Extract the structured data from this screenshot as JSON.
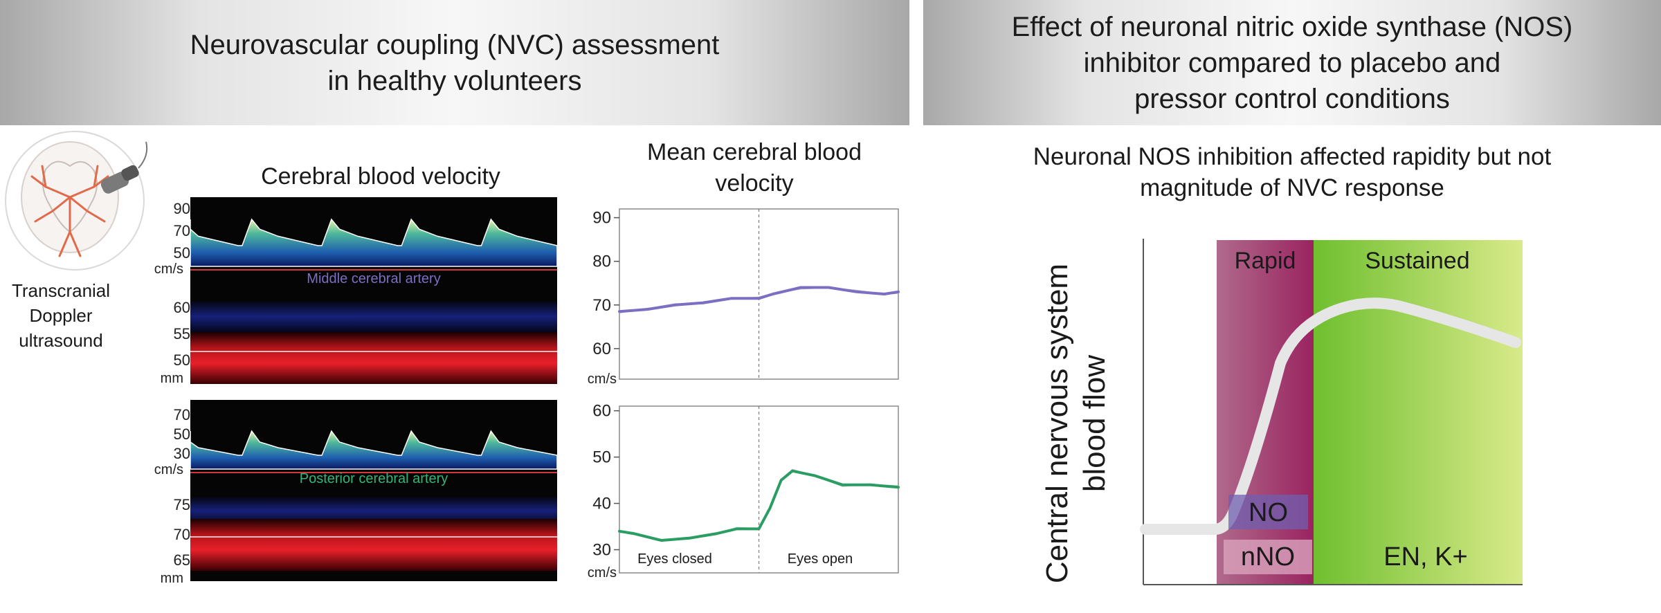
{
  "left_banner": {
    "line1": "Neurovascular coupling (NVC) assessment",
    "line2": "in healthy volunteers"
  },
  "right_banner": {
    "line1": "Effect of neuronal nitric oxide synthase (NOS)",
    "line2": "inhibitor compared to placebo and",
    "line3": "pressor control conditions"
  },
  "doppler": {
    "line1": "Transcranial",
    "line2": "Doppler",
    "line3": "ultrasound"
  },
  "cbv_title": "Cerebral blood velocity",
  "mca": {
    "label": "Middle cerebral artery",
    "velocity_ticks": [
      "90",
      "70",
      "50"
    ],
    "velocity_unit": "cm/s",
    "depth_ticks": [
      "60",
      "55",
      "50"
    ],
    "depth_unit": "mm"
  },
  "pca": {
    "label": "Posterior cerebral artery",
    "velocity_ticks": [
      "70",
      "50",
      "30"
    ],
    "velocity_unit": "cm/s",
    "depth_ticks": [
      "75",
      "70",
      "65"
    ],
    "depth_unit": "mm"
  },
  "mean_title": {
    "line1": "Mean cerebral blood",
    "line2": "velocity"
  },
  "eyes": {
    "closed": "Eyes closed",
    "open": "Eyes open"
  },
  "colors": {
    "mca_mean": "#7b6fc4",
    "pca_mean": "#2a9d63",
    "rapid": "#a3386e",
    "sustained": "#8cc63f",
    "curve": "#e6e6e6"
  },
  "chart_data": [
    {
      "type": "line",
      "name": "MCA mean cerebral blood velocity",
      "ylabel": "cm/s",
      "yticks": [
        60,
        70,
        80,
        90
      ],
      "ylim": [
        53,
        92
      ],
      "xlim": [
        0,
        1
      ],
      "event_x": 0.5,
      "series": [
        {
          "x": [
            0,
            0.1,
            0.2,
            0.3,
            0.4,
            0.5,
            0.55,
            0.65,
            0.75,
            0.85,
            0.95,
            1.0
          ],
          "values": [
            68.5,
            69,
            70,
            70.5,
            71.5,
            71.5,
            72.5,
            74,
            74,
            73,
            72.5,
            73
          ]
        }
      ]
    },
    {
      "type": "line",
      "name": "PCA mean cerebral blood velocity",
      "ylabel": "cm/s",
      "yticks": [
        30,
        40,
        50,
        60
      ],
      "ylim": [
        25,
        61
      ],
      "xlim": [
        0,
        1
      ],
      "event_x": 0.5,
      "series": [
        {
          "x": [
            0,
            0.05,
            0.15,
            0.25,
            0.35,
            0.42,
            0.5,
            0.54,
            0.58,
            0.62,
            0.7,
            0.8,
            0.9,
            1.0
          ],
          "values": [
            34,
            33.5,
            32,
            32.5,
            33.5,
            34.5,
            34.5,
            39,
            45,
            47,
            46,
            44,
            44,
            43.5
          ]
        }
      ]
    }
  ],
  "nos": {
    "subtitle_line1": "Neuronal NOS inhibition affected rapidity but not",
    "subtitle_line2": "magnitude of NVC response",
    "ylabel_line1": "Central nervous system",
    "ylabel_line2": "blood flow",
    "rapid_label": "Rapid",
    "sustained_label": "Sustained",
    "no_label": "NO",
    "nno_label": "nNO",
    "en_label": "EN, K+"
  }
}
